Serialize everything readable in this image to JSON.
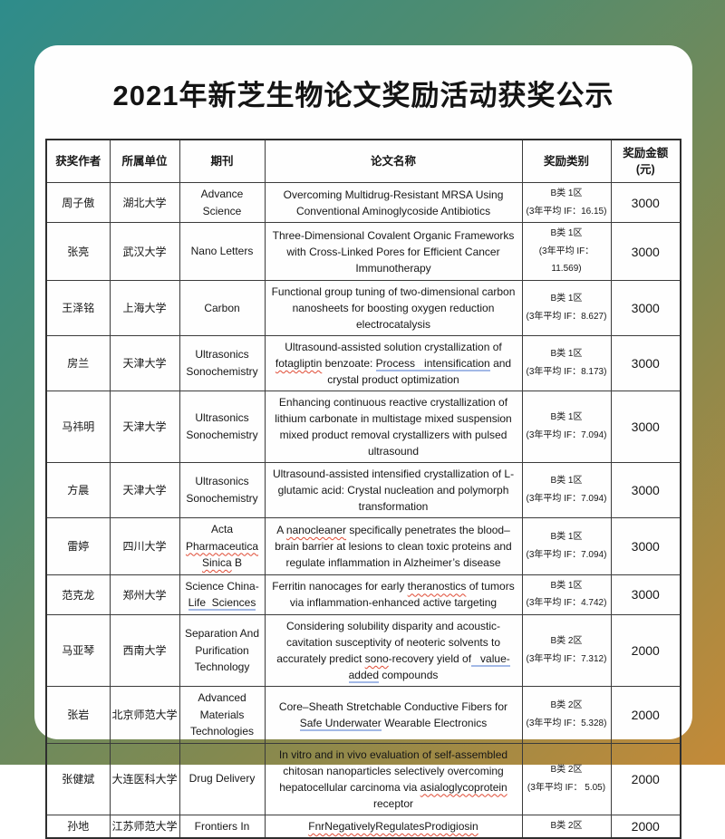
{
  "title": "2021年新芝生物论文奖励活动获奖公示",
  "colors": {
    "bg_gradient_start": "#2e8c8b",
    "bg_gradient_green": "#4e8c70",
    "bg_gradient_olive": "#84894f",
    "bg_gradient_end": "#c48a38",
    "card": "#fefefe",
    "table_border": "#3b3b3b",
    "spellcheck_red": "#e04b35",
    "grammar_blue": "#a3b9e6"
  },
  "table": {
    "headers": [
      {
        "key": "author",
        "lines": [
          "获奖作者"
        ]
      },
      {
        "key": "org",
        "lines": [
          "所属单位"
        ]
      },
      {
        "key": "journal",
        "lines": [
          "期刊"
        ]
      },
      {
        "key": "title",
        "lines": [
          "论文名称"
        ]
      },
      {
        "key": "category",
        "lines": [
          "奖励类别"
        ]
      },
      {
        "key": "amount",
        "lines": [
          "奖励金额",
          "(元)"
        ]
      }
    ],
    "rows": [
      {
        "author": "周子傲",
        "org": "湖北大学",
        "journal": [
          {
            "t": "Advance Science"
          }
        ],
        "title": [
          {
            "t": "Overcoming Multidrug-Resistant MRSA Using Conventional Aminoglycoside Antibiotics"
          }
        ],
        "category": [
          "B类 1区",
          "(3年平均 IF：16.15)"
        ],
        "amount": "3000"
      },
      {
        "author": "张亮",
        "org": "武汉大学",
        "journal": [
          {
            "t": "Nano Letters"
          }
        ],
        "title": [
          {
            "t": "Three-Dimensional Covalent Organic Frameworks with Cross-Linked Pores for Efficient Cancer Immunotherapy"
          }
        ],
        "category": [
          "B类 1区",
          "(3年平均 IF：",
          "11.569)"
        ],
        "amount": "3000"
      },
      {
        "author": "王泽铭",
        "org": "上海大学",
        "journal": [
          {
            "t": "Carbon"
          }
        ],
        "title": [
          {
            "t": "Functional group tuning of two-dimensional carbon nanosheets for boosting oxygen reduction electrocatalysis"
          }
        ],
        "category": [
          "B类 1区",
          "(3年平均 IF：8.627)"
        ],
        "amount": "3000"
      },
      {
        "author": "房兰",
        "org": "天津大学",
        "journal": [
          {
            "t": "Ultrasonics Sonochemistry"
          }
        ],
        "title": [
          {
            "t": "Ultrasound-assisted solution crystallization of "
          },
          {
            "t": "fotagliptin",
            "m": "red"
          },
          {
            "t": " benzoate: "
          },
          {
            "t": "Process   intensification",
            "m": "blue"
          },
          {
            "t": " and crystal product optimization"
          }
        ],
        "category": [
          "B类 1区",
          "(3年平均 IF：8.173)"
        ],
        "amount": "3000"
      },
      {
        "author": "马祎明",
        "org": "天津大学",
        "journal": [
          {
            "t": "Ultrasonics Sonochemistry"
          }
        ],
        "title": [
          {
            "t": "Enhancing continuous reactive crystallization of lithium carbonate in multistage mixed suspension mixed product removal crystallizers with pulsed ultrasound"
          }
        ],
        "category": [
          "B类 1区",
          "(3年平均 IF：7.094)"
        ],
        "amount": "3000"
      },
      {
        "author": "方晨",
        "org": "天津大学",
        "journal": [
          {
            "t": "Ultrasonics Sonochemistry"
          }
        ],
        "title": [
          {
            "t": "Ultrasound-assisted intensified crystallization of L-glutamic acid: Crystal nucleation and polymorph transformation"
          }
        ],
        "category": [
          "B类 1区",
          "(3年平均 IF：7.094)"
        ],
        "amount": "3000"
      },
      {
        "author": "雷婷",
        "org": "四川大学",
        "journal": [
          {
            "t": "Acta "
          },
          {
            "t": "Pharmaceutica",
            "m": "red"
          },
          {
            "t": " "
          },
          {
            "t": "Sinica",
            "m": "red"
          },
          {
            "t": " B"
          }
        ],
        "title": [
          {
            "t": "A "
          },
          {
            "t": "nanocleaner",
            "m": "red"
          },
          {
            "t": " specifically penetrates the blood– brain barrier at lesions to clean toxic proteins and regulate inflammation in Alzheimer’s disease"
          }
        ],
        "category": [
          "B类 1区",
          "(3年平均 IF：7.094)"
        ],
        "amount": "3000"
      },
      {
        "author": "范克龙",
        "org": "郑州大学",
        "journal": [
          {
            "t": "Science China-"
          },
          {
            "t": "Life  Sciences",
            "m": "blue"
          }
        ],
        "title": [
          {
            "t": "Ferritin nanocages for early "
          },
          {
            "t": "theranostics",
            "m": "red"
          },
          {
            "t": " of tumors via inflammation-enhanced active targeting"
          }
        ],
        "category": [
          "B类 1区",
          "(3年平均 IF：4.742)"
        ],
        "amount": "3000"
      },
      {
        "author": "马亚琴",
        "org": "西南大学",
        "journal": [
          {
            "t": "Separation And Purification Technology"
          }
        ],
        "title": [
          {
            "t": "Considering solubility disparity and acoustic-cavitation susceptivity of neoteric solvents to accurately predict "
          },
          {
            "t": "sono",
            "m": "red"
          },
          {
            "t": "-recovery yield of"
          },
          {
            "t": "   value-added",
            "m": "blue"
          },
          {
            "t": " compounds"
          }
        ],
        "category": [
          "B类 2区",
          "(3年平均 IF：7.312)"
        ],
        "amount": "2000"
      },
      {
        "author": "张岩",
        "org": "北京师范大学",
        "journal": [
          {
            "t": "Advanced Materials Technologies"
          }
        ],
        "title": [
          {
            "t": "Core–Sheath Stretchable Conductive Fibers for "
          },
          {
            "t": "Safe Underwater",
            "m": "blue"
          },
          {
            "t": " Wearable Electronics"
          }
        ],
        "category": [
          "B类 2区",
          "(3年平均 IF：5.328)"
        ],
        "amount": "2000"
      },
      {
        "author": "张健斌",
        "org": "大连医科大学",
        "journal": [
          {
            "t": "Drug Delivery"
          }
        ],
        "title": [
          {
            "t": "In vitro and in vivo evaluation of self-assembled chitosan nanoparticles selectively overcoming hepatocellular carcinoma via "
          },
          {
            "t": "asialoglycoprotein",
            "m": "red"
          },
          {
            "t": " receptor"
          }
        ],
        "category": [
          "B类 2区",
          "(3年平均 IF： 5.05)"
        ],
        "amount": "2000"
      },
      {
        "author": "孙地",
        "org": "江苏师范大学",
        "journal": [
          {
            "t": "Frontiers In"
          }
        ],
        "title": [
          {
            "t": "FnrNegativelyRegulatesProdigiosin",
            "m": "red"
          }
        ],
        "category": [
          "B类 2区"
        ],
        "amount": "2000"
      }
    ]
  }
}
